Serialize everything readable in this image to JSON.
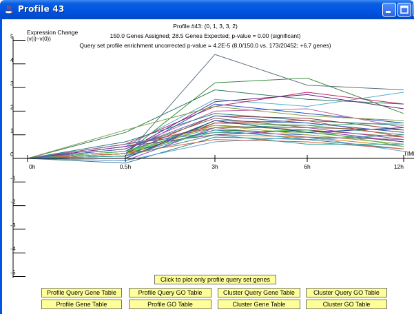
{
  "window": {
    "title": "Profile 43"
  },
  "header": {
    "line1": "Profile #43: (0, 1, 3, 3, 2)",
    "line2": "150.0 Genes Assigned; 28.5 Genes Expected; p-value = 0.00 (significant)",
    "line3": "Query set profile enrichment uncorrected p-value = 4.2E-5 (8.0/150.0 vs. 173/20452; +6.7 genes)"
  },
  "chart_data": {
    "type": "line",
    "ylabel": "Expression Change",
    "ylabel_sub": "(v(i)−v(0))",
    "xlabel": "TIME",
    "categories": [
      "0h",
      "0.5h",
      "3h",
      "6h",
      "12h"
    ],
    "y_ticks": [
      "5",
      "4",
      "3",
      "2",
      "1",
      "0",
      "-1",
      "-2",
      "-3",
      "-4",
      "-5"
    ],
    "ylim": [
      -5,
      5
    ],
    "series": [
      {
        "color": "#607080",
        "values": [
          0,
          0.1,
          4.4,
          3.1,
          2.9
        ]
      },
      {
        "color": "#3a8a3a",
        "values": [
          0,
          0.2,
          3.2,
          3.4,
          1.9
        ]
      },
      {
        "color": "#2a7a5a",
        "values": [
          0,
          1.1,
          2.9,
          2.5,
          2.3
        ]
      },
      {
        "color": "#4ab0d0",
        "values": [
          0,
          0.5,
          2.5,
          2.2,
          2.8
        ]
      },
      {
        "color": "#c02060",
        "values": [
          0,
          0.6,
          2.2,
          2.8,
          2.3
        ]
      },
      {
        "color": "#602080",
        "values": [
          0,
          0.3,
          2.4,
          2.7,
          2.1
        ]
      },
      {
        "color": "#2050c0",
        "values": [
          0,
          0.2,
          2.3,
          1.9,
          1.5
        ]
      },
      {
        "color": "#80a040",
        "values": [
          0,
          1.2,
          2.2,
          1.8,
          1.6
        ]
      },
      {
        "color": "#c060a0",
        "values": [
          0,
          0.4,
          2.0,
          2.1,
          1.3
        ]
      },
      {
        "color": "#208080",
        "values": [
          0,
          0.7,
          1.9,
          1.6,
          1.4
        ]
      },
      {
        "color": "#a03030",
        "values": [
          0,
          0.2,
          1.8,
          1.7,
          1.2
        ]
      },
      {
        "color": "#3060a0",
        "values": [
          0,
          0.1,
          1.6,
          1.5,
          1.1
        ]
      },
      {
        "color": "#40a040",
        "values": [
          0,
          0.3,
          1.5,
          1.4,
          1.0
        ]
      },
      {
        "color": "#906030",
        "values": [
          0,
          0.5,
          1.4,
          1.2,
          0.9
        ]
      },
      {
        "color": "#a040c0",
        "values": [
          0,
          -0.1,
          1.3,
          1.3,
          0.8
        ]
      },
      {
        "color": "#208040",
        "values": [
          0,
          0.2,
          1.2,
          1.1,
          0.7
        ]
      },
      {
        "color": "#4070d0",
        "values": [
          0,
          0.6,
          1.1,
          1.0,
          0.6
        ]
      },
      {
        "color": "#d08020",
        "values": [
          0,
          0.1,
          1.0,
          0.9,
          0.5
        ]
      },
      {
        "color": "#308080",
        "values": [
          0,
          -0.2,
          0.9,
          0.8,
          0.4
        ]
      },
      {
        "color": "#60a0e0",
        "values": [
          0,
          -0.1,
          0.7,
          0.9,
          0.3
        ]
      },
      {
        "color": "#806040",
        "values": [
          0,
          0.4,
          1.7,
          1.3,
          1.2
        ]
      },
      {
        "color": "#c04040",
        "values": [
          0,
          0.0,
          1.5,
          1.6,
          0.9
        ]
      },
      {
        "color": "#50b080",
        "values": [
          0,
          0.3,
          1.3,
          1.4,
          1.5
        ]
      },
      {
        "color": "#7030a0",
        "values": [
          0,
          0.5,
          1.0,
          1.2,
          0.7
        ]
      },
      {
        "color": "#b0b030",
        "values": [
          0,
          0.2,
          1.4,
          1.0,
          0.6
        ]
      },
      {
        "color": "#3090b0",
        "values": [
          0,
          0.1,
          1.2,
          0.8,
          1.0
        ]
      },
      {
        "color": "#a06080",
        "values": [
          0,
          0.6,
          1.3,
          0.9,
          0.8
        ]
      },
      {
        "color": "#50c050",
        "values": [
          0,
          0.3,
          1.1,
          1.2,
          0.5
        ]
      },
      {
        "color": "#204090",
        "values": [
          0,
          0.0,
          1.6,
          1.1,
          1.3
        ]
      },
      {
        "color": "#d06040",
        "values": [
          0,
          0.2,
          0.8,
          0.7,
          0.4
        ]
      },
      {
        "color": "#5060c0",
        "values": [
          0,
          0.4,
          1.8,
          1.5,
          1.1
        ]
      },
      {
        "color": "#30a0a0",
        "values": [
          0,
          0.1,
          1.0,
          0.6,
          0.6
        ]
      }
    ]
  },
  "buttons": {
    "plot_query_only": "Click to plot only profile query set genes",
    "profile_query_gene_table": "Profile Query Gene Table",
    "profile_query_go_table": "Profile Query GO Table",
    "cluster_query_gene_table": "Cluster Query Gene Table",
    "cluster_query_go_table": "Cluster Query GO Table",
    "profile_gene_table": "Profile Gene Table",
    "profile_go_table": "Profile GO Table",
    "cluster_gene_table": "Cluster Gene Table",
    "cluster_go_table": "Cluster GO Table"
  }
}
